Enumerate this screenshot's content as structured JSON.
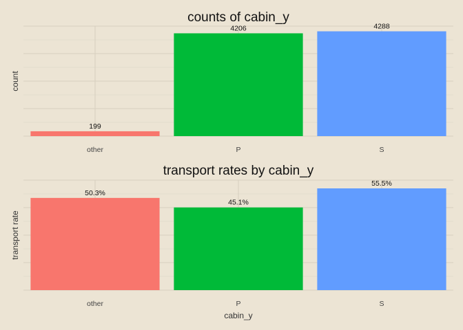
{
  "chart_data": [
    {
      "type": "bar",
      "title": "counts of cabin_y",
      "xlabel": "",
      "ylabel": "count",
      "categories": [
        "other",
        "P",
        "S"
      ],
      "values": [
        199,
        4206,
        4288
      ],
      "data_labels": [
        "199",
        "4206",
        "4288"
      ],
      "colors": [
        "#F8766D",
        "#00BA38",
        "#619CFF"
      ],
      "ylim": [
        0,
        4500
      ],
      "grid": true,
      "y_ticks_shown": false
    },
    {
      "type": "bar",
      "title": "transport rates by cabin_y",
      "xlabel": "cabin_y",
      "ylabel": "transport rate",
      "categories": [
        "other",
        "P",
        "S"
      ],
      "values": [
        0.503,
        0.451,
        0.555
      ],
      "data_labels": [
        "50.3%",
        "45.1%",
        "55.5%"
      ],
      "colors": [
        "#F8766D",
        "#00BA38",
        "#619CFF"
      ],
      "ylim": [
        0,
        0.6
      ],
      "grid": true,
      "y_ticks_shown": false
    }
  ]
}
